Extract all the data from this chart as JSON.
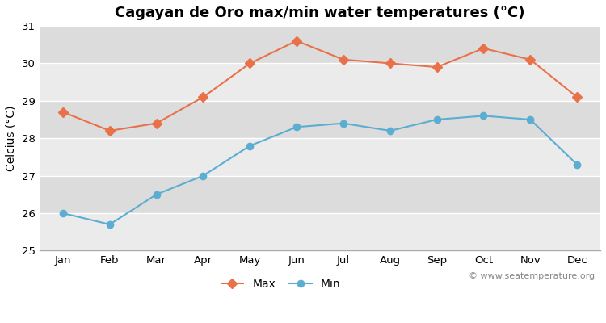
{
  "title": "Cagayan de Oro max/min water temperatures (°C)",
  "ylabel": "Celcius (°C)",
  "months": [
    "Jan",
    "Feb",
    "Mar",
    "Apr",
    "May",
    "Jun",
    "Jul",
    "Aug",
    "Sep",
    "Oct",
    "Nov",
    "Dec"
  ],
  "max_values": [
    28.7,
    28.2,
    28.4,
    29.1,
    30.0,
    30.6,
    30.1,
    30.0,
    29.9,
    30.4,
    30.1,
    29.1
  ],
  "min_values": [
    26.0,
    25.7,
    26.5,
    27.0,
    27.8,
    28.3,
    28.4,
    28.2,
    28.5,
    28.6,
    28.5,
    27.3
  ],
  "max_color": "#E8714A",
  "min_color": "#5BAED1",
  "background_color": "#ffffff",
  "plot_bg_color": "#ebebeb",
  "band_color_light": "#ebebeb",
  "band_color_dark": "#dcdcdc",
  "ylim": [
    25,
    31
  ],
  "yticks": [
    25,
    26,
    27,
    28,
    29,
    30,
    31
  ],
  "grid_color": "#ffffff",
  "watermark": "© www.seatemperature.org",
  "legend_labels": [
    "Max",
    "Min"
  ],
  "title_fontsize": 13,
  "axis_fontsize": 10,
  "tick_fontsize": 9.5,
  "watermark_fontsize": 8
}
